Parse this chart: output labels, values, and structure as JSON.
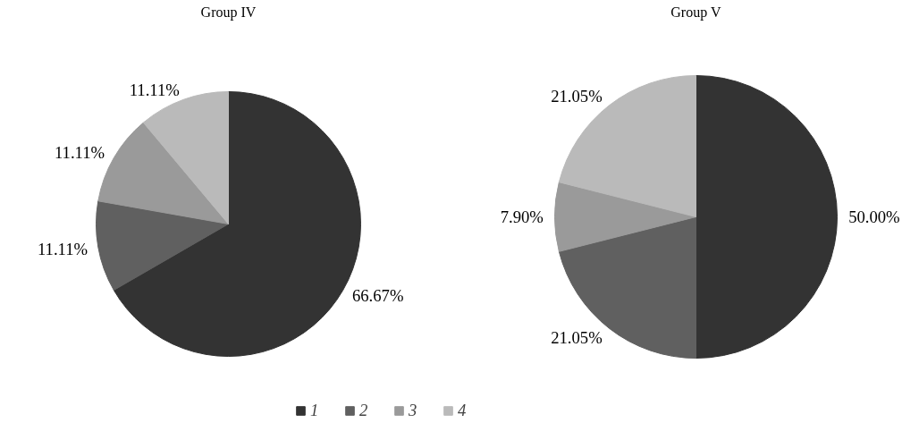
{
  "chart_data": [
    {
      "type": "pie",
      "title": "Group IV",
      "categories": [
        "1",
        "2",
        "3",
        "4"
      ],
      "values": [
        66.67,
        11.11,
        11.11,
        11.11
      ],
      "colors": [
        "#333333",
        "#606060",
        "#9a9a9a",
        "#bababa"
      ],
      "value_labels": [
        "66.67%",
        "11.11%",
        "11.11%",
        "11.11%"
      ],
      "legend": "bottom"
    },
    {
      "type": "pie",
      "title": "Group V",
      "categories": [
        null,
        null,
        null,
        null
      ],
      "values": [
        50.0,
        21.05,
        7.9,
        21.05
      ],
      "colors": [
        "#333333",
        "#606060",
        "#9a9a9a",
        "#bababa"
      ],
      "value_labels": [
        "50.00%",
        "21.05%",
        "7.90%",
        "21.05%"
      ]
    }
  ]
}
